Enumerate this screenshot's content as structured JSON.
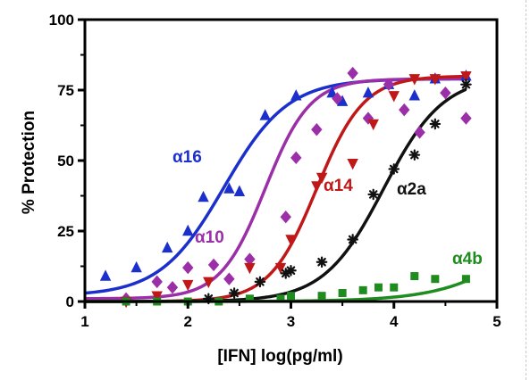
{
  "chart_data": {
    "type": "scatter",
    "title": "",
    "xlabel": "[IFN] log(pg/ml)",
    "ylabel": "% Protection",
    "xlim": [
      1,
      5
    ],
    "ylim": [
      0,
      100
    ],
    "x_ticks": [
      "1",
      "2",
      "3",
      "4",
      "5"
    ],
    "y_ticks": [
      "0",
      "25",
      "50",
      "75",
      "100"
    ],
    "fit": "sigmoidal dose-response curve per series",
    "series": [
      {
        "name": "α16",
        "color": "#1a2fcc",
        "marker": "triangle-up",
        "fit": {
          "bottom": 2,
          "top": 79,
          "ec50": 2.35,
          "hill": 1.4
        },
        "x": [
          1.2,
          1.5,
          1.8,
          2.0,
          2.15,
          2.4,
          2.5,
          2.75,
          3.05,
          3.4,
          3.5,
          3.75,
          3.95,
          4.2,
          4.4,
          4.7
        ],
        "y": [
          9,
          12,
          19,
          25,
          37,
          40,
          39,
          66,
          73,
          74,
          71,
          74,
          77,
          73,
          79,
          80
        ]
      },
      {
        "name": "α10",
        "color": "#9b2fa8",
        "marker": "diamond",
        "fit": {
          "bottom": 1,
          "top": 79,
          "ec50": 2.75,
          "hill": 2.0
        },
        "x": [
          1.4,
          1.7,
          1.85,
          2.0,
          2.25,
          2.4,
          2.6,
          2.95,
          3.05,
          3.25,
          3.45,
          3.6,
          3.75,
          3.95,
          4.1,
          4.25,
          4.5,
          4.7
        ],
        "y": [
          1,
          7,
          5,
          12,
          13,
          8,
          15,
          30,
          51,
          61,
          72,
          81,
          65,
          77,
          68,
          60,
          74,
          65
        ]
      },
      {
        "name": "α14",
        "color": "#c01818",
        "marker": "triangle-down",
        "fit": {
          "bottom": 0,
          "top": 80,
          "ec50": 3.25,
          "hill": 1.9
        },
        "x": [
          1.4,
          1.7,
          2.0,
          2.2,
          2.6,
          2.9,
          3.0,
          3.25,
          3.3,
          3.6,
          3.8,
          4.0,
          4.2,
          4.4,
          4.7
        ],
        "y": [
          0,
          2,
          6,
          7,
          12,
          12,
          22,
          41,
          44,
          49,
          63,
          73,
          79,
          79,
          80
        ]
      },
      {
        "name": "α2a",
        "color": "#111111",
        "marker": "asterisk",
        "fit": {
          "bottom": 0,
          "top": 80,
          "ec50": 3.9,
          "hill": 1.5
        },
        "x": [
          2.2,
          2.45,
          2.7,
          2.95,
          3.0,
          3.3,
          3.6,
          3.8,
          4.0,
          4.2,
          4.4,
          4.7
        ],
        "y": [
          1,
          3,
          7,
          10,
          11,
          14,
          22,
          38,
          47,
          52,
          63,
          77
        ]
      },
      {
        "name": "α4b",
        "color": "#1e8c1e",
        "marker": "square",
        "fit": {
          "bottom": 0,
          "top": 80,
          "ec50": 5.7,
          "hill": 1.0
        },
        "x": [
          1.4,
          1.7,
          2.0,
          2.3,
          2.6,
          2.9,
          3.0,
          3.3,
          3.5,
          3.7,
          3.85,
          4.0,
          4.2,
          4.4,
          4.7
        ],
        "y": [
          0,
          0,
          0,
          0,
          1,
          1,
          2,
          2,
          3,
          4,
          5,
          5,
          9,
          8,
          8
        ]
      }
    ]
  }
}
